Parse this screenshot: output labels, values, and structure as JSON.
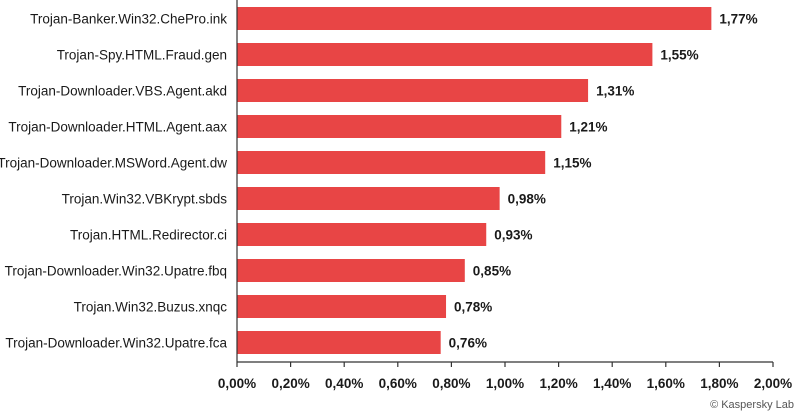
{
  "chart_data": {
    "type": "bar",
    "orientation": "horizontal",
    "categories": [
      "Trojan-Banker.Win32.ChePro.ink",
      "Trojan-Spy.HTML.Fraud.gen",
      "Trojan-Downloader.VBS.Agent.akd",
      "Trojan-Downloader.HTML.Agent.aax",
      "Trojan-Downloader.MSWord.Agent.dw",
      "Trojan.Win32.VBKrypt.sbds",
      "Trojan.HTML.Redirector.ci",
      "Trojan-Downloader.Win32.Upatre.fbq",
      "Trojan.Win32.Buzus.xnqc",
      "Trojan-Downloader.Win32.Upatre.fca"
    ],
    "values": [
      1.77,
      1.55,
      1.31,
      1.21,
      1.15,
      0.98,
      0.93,
      0.85,
      0.78,
      0.76
    ],
    "value_labels": [
      "1,77%",
      "1,55%",
      "1,31%",
      "1,21%",
      "1,15%",
      "0,98%",
      "0,93%",
      "0,85%",
      "0,78%",
      "0,76%"
    ],
    "xlim": [
      0,
      2.0
    ],
    "x_ticks": [
      0,
      0.2,
      0.4,
      0.6,
      0.8,
      1.0,
      1.2,
      1.4,
      1.6,
      1.8,
      2.0
    ],
    "x_tick_labels": [
      "0,00%",
      "0,20%",
      "0,40%",
      "0,60%",
      "0,80%",
      "1,00%",
      "1,20%",
      "1,40%",
      "1,60%",
      "1,80%",
      "2,00%"
    ],
    "bar_color": "#e84545",
    "grid": false,
    "title": "",
    "xlabel": "",
    "ylabel": ""
  },
  "credit": "© Kaspersky Lab"
}
